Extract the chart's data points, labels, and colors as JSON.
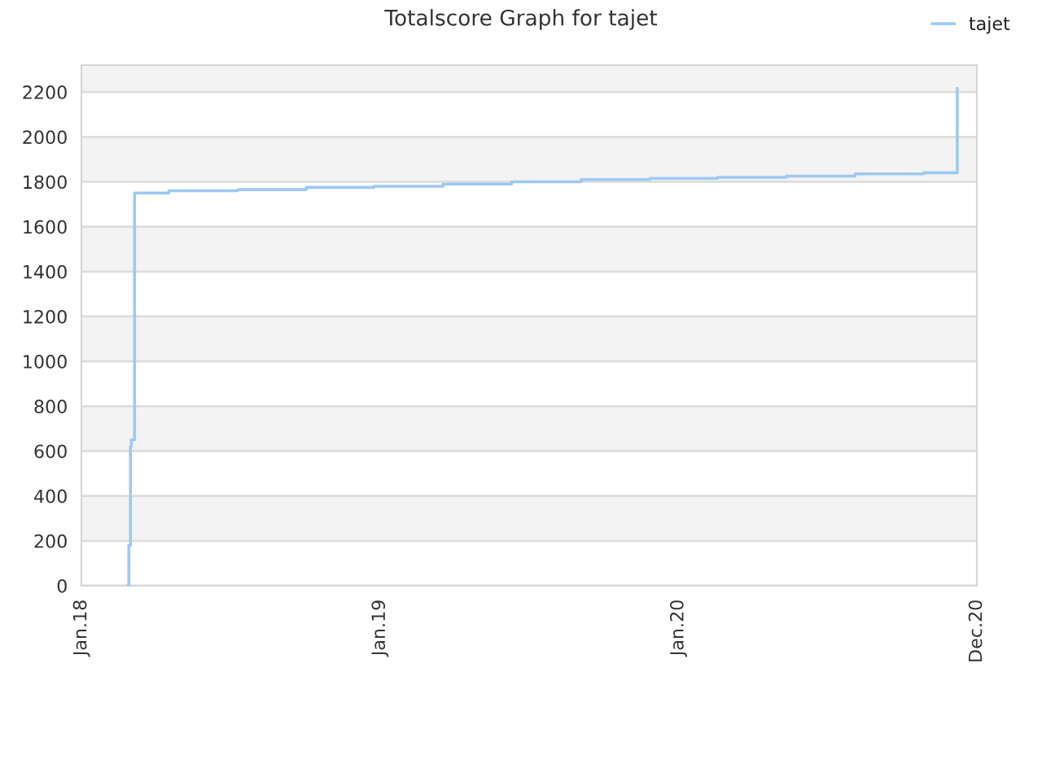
{
  "chart_data": {
    "type": "step",
    "title": "Totalscore Graph for tajet",
    "x": [
      "2018-02-27",
      "2018-02-28",
      "2018-03-02",
      "2018-03-03",
      "2018-03-07",
      "2018-04-18",
      "2018-07-11",
      "2018-10-03",
      "2018-12-25",
      "2019-03-19",
      "2019-06-11",
      "2019-09-04",
      "2019-11-27",
      "2020-02-18",
      "2020-05-12",
      "2020-08-04",
      "2020-10-27",
      "2020-12-07"
    ],
    "series": [
      {
        "name": "tajet",
        "color": "#9cc9f4",
        "values": [
          0,
          180,
          620,
          650,
          1750,
          1760,
          1765,
          1775,
          1780,
          1790,
          1800,
          1810,
          1815,
          1820,
          1825,
          1835,
          1840,
          2215
        ]
      }
    ],
    "xlim": [
      "2018-01-01",
      "2020-12-31"
    ],
    "xticks": [
      {
        "value": "2018-01-01",
        "label": "Jan.18"
      },
      {
        "value": "2019-01-01",
        "label": "Jan.19"
      },
      {
        "value": "2020-01-01",
        "label": "Jan.20"
      },
      {
        "value": "2020-12-31",
        "label": "Dec.20"
      }
    ],
    "ylim": [
      0,
      2320
    ],
    "yticks": [
      0,
      200,
      400,
      600,
      800,
      1000,
      1200,
      1400,
      1600,
      1800,
      2000,
      2200
    ],
    "grid": "y",
    "legend": "top right",
    "line_style": "solid"
  }
}
